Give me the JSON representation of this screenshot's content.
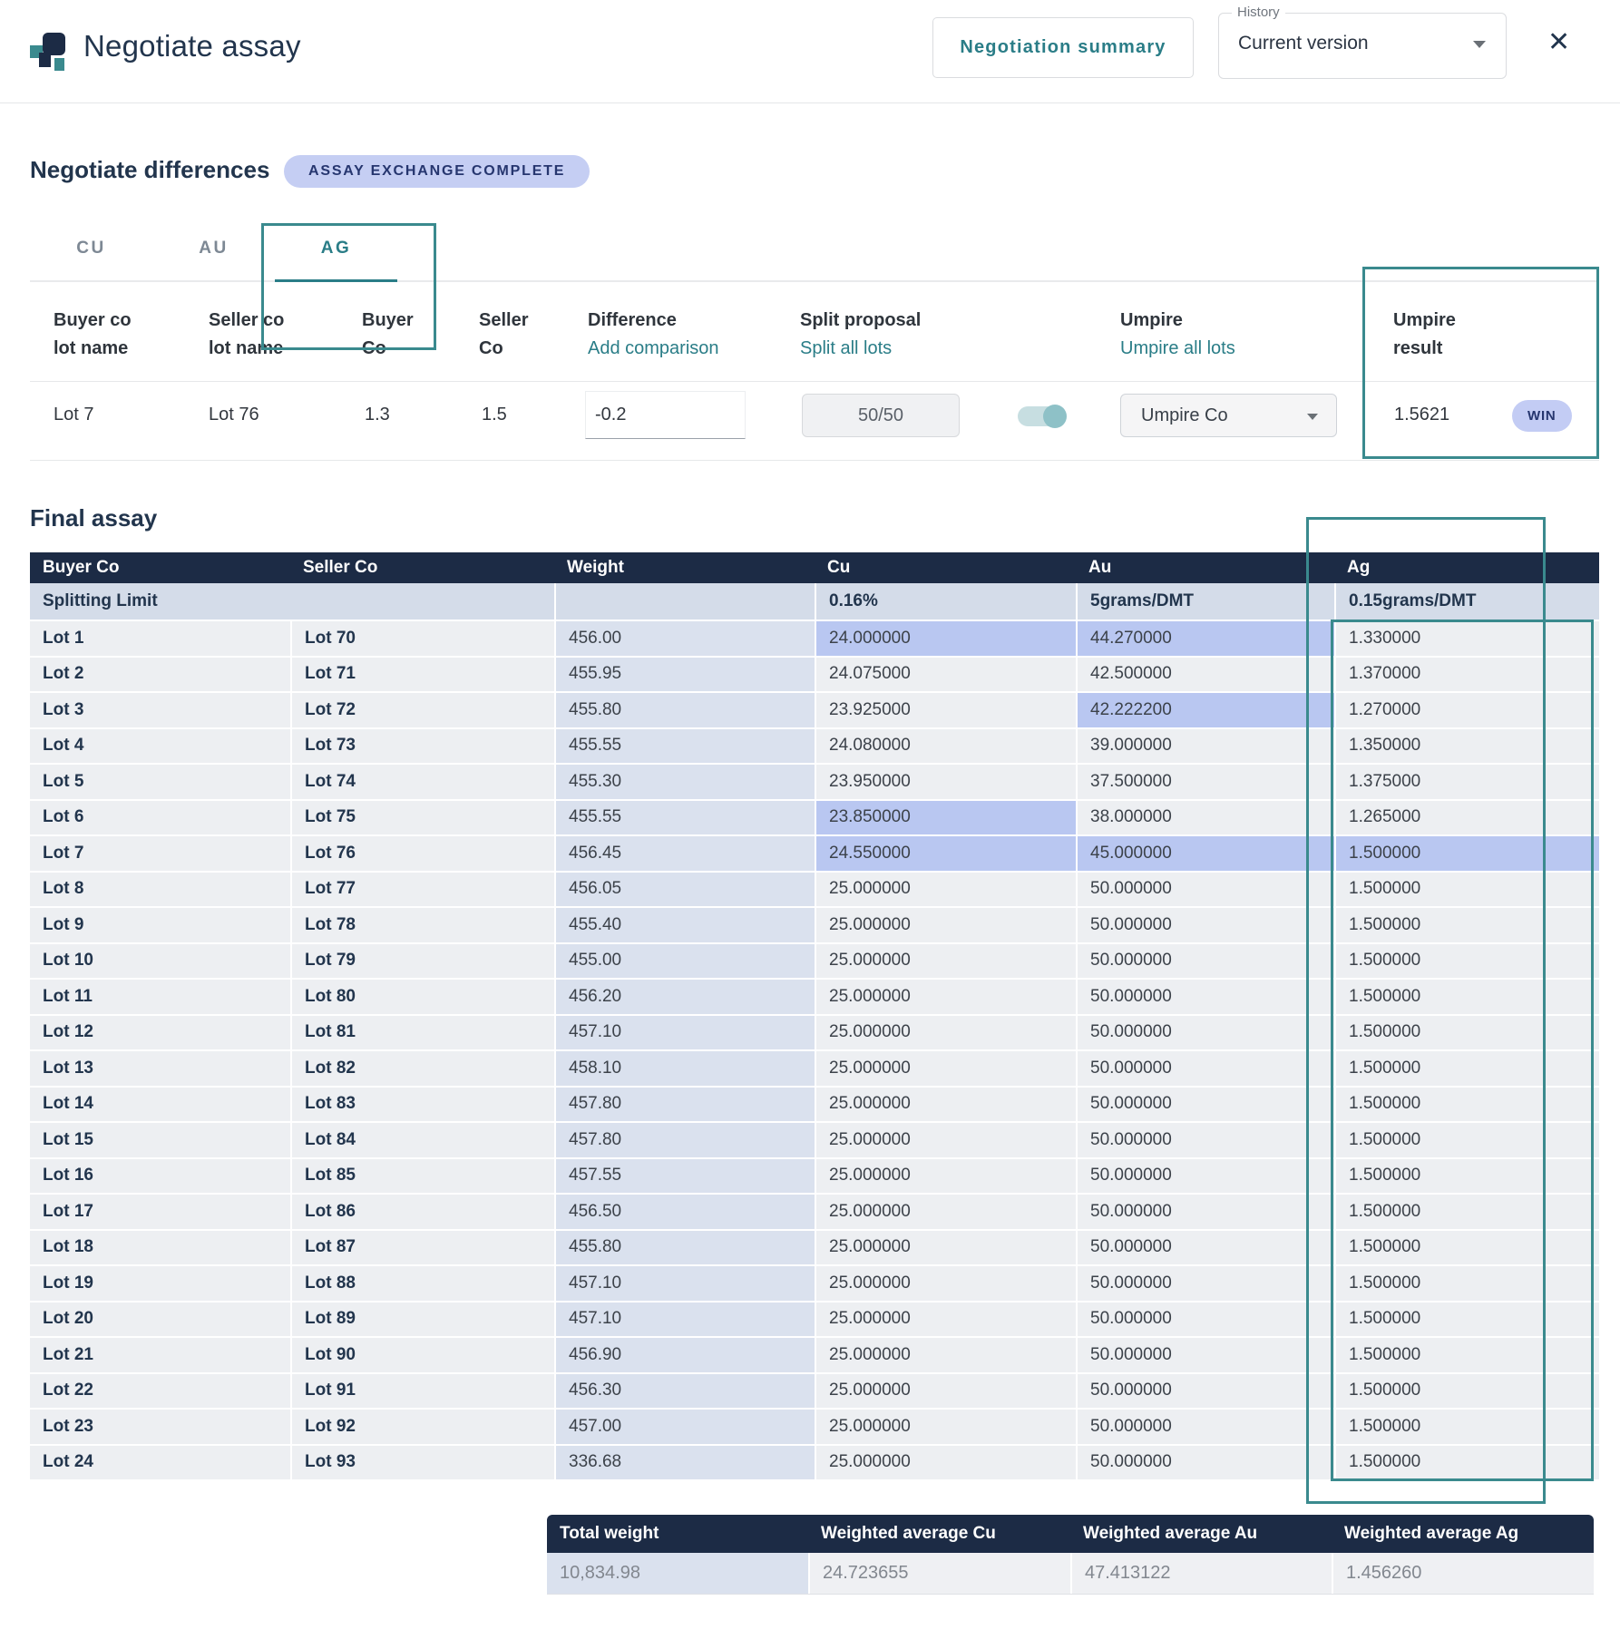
{
  "header": {
    "title": "Negotiate assay",
    "summary_button": "Negotiation summary",
    "history_label": "History",
    "history_value": "Current version"
  },
  "icons": {
    "close": "✕"
  },
  "negotiate_differences": {
    "heading": "Negotiate differences",
    "status_badge": "ASSAY EXCHANGE COMPLETE",
    "tabs": [
      {
        "label": "CU",
        "active": false
      },
      {
        "label": "AU",
        "active": false
      },
      {
        "label": "AG",
        "active": true
      }
    ],
    "columns": {
      "buyer_lot": [
        "Buyer co",
        "lot name"
      ],
      "seller_lot": [
        "Seller co",
        "lot name"
      ],
      "buyer_co": [
        "Buyer",
        "Co"
      ],
      "seller_co": [
        "Seller",
        "Co"
      ],
      "difference": {
        "title": "Difference",
        "link": "Add comparison"
      },
      "split": {
        "title": "Split proposal",
        "link": "Split all lots"
      },
      "umpire": {
        "title": "Umpire",
        "link": "Umpire all lots"
      },
      "result": [
        "Umpire",
        "result"
      ]
    },
    "row": {
      "buyer_lot": "Lot 7",
      "seller_lot": "Lot 76",
      "buyer_co": "1.3",
      "seller_co": "1.5",
      "difference": "-0.2",
      "split_button": "50/50",
      "toggle_on": true,
      "umpire_select": "Umpire Co",
      "umpire_result": "1.5621",
      "result_badge": "WIN"
    }
  },
  "final_assay": {
    "heading": "Final assay",
    "columns": [
      "Buyer Co",
      "Seller Co",
      "Weight",
      "Cu",
      "Au",
      "Ag"
    ],
    "splitting_limit": {
      "label": "Splitting Limit",
      "cu": "0.16%",
      "au": "5grams/DMT",
      "ag": "0.15grams/DMT"
    },
    "rows": [
      {
        "buyer": "Lot 1",
        "seller": "Lot 70",
        "weight": "456.00",
        "cu": "24.000000",
        "au": "44.270000",
        "ag": "1.330000",
        "hl": [
          "cu",
          "au"
        ]
      },
      {
        "buyer": "Lot 2",
        "seller": "Lot 71",
        "weight": "455.95",
        "cu": "24.075000",
        "au": "42.500000",
        "ag": "1.370000",
        "hl": []
      },
      {
        "buyer": "Lot 3",
        "seller": "Lot 72",
        "weight": "455.80",
        "cu": "23.925000",
        "au": "42.222200",
        "ag": "1.270000",
        "hl": [
          "au"
        ]
      },
      {
        "buyer": "Lot 4",
        "seller": "Lot 73",
        "weight": "455.55",
        "cu": "24.080000",
        "au": "39.000000",
        "ag": "1.350000",
        "hl": []
      },
      {
        "buyer": "Lot 5",
        "seller": "Lot 74",
        "weight": "455.30",
        "cu": "23.950000",
        "au": "37.500000",
        "ag": "1.375000",
        "hl": []
      },
      {
        "buyer": "Lot 6",
        "seller": "Lot 75",
        "weight": "455.55",
        "cu": "23.850000",
        "au": "38.000000",
        "ag": "1.265000",
        "hl": [
          "cu"
        ]
      },
      {
        "buyer": "Lot 7",
        "seller": "Lot 76",
        "weight": "456.45",
        "cu": "24.550000",
        "au": "45.000000",
        "ag": "1.500000",
        "hl": [
          "cu",
          "au",
          "ag"
        ]
      },
      {
        "buyer": "Lot 8",
        "seller": "Lot 77",
        "weight": "456.05",
        "cu": "25.000000",
        "au": "50.000000",
        "ag": "1.500000",
        "hl": []
      },
      {
        "buyer": "Lot 9",
        "seller": "Lot 78",
        "weight": "455.40",
        "cu": "25.000000",
        "au": "50.000000",
        "ag": "1.500000",
        "hl": []
      },
      {
        "buyer": "Lot 10",
        "seller": "Lot 79",
        "weight": "455.00",
        "cu": "25.000000",
        "au": "50.000000",
        "ag": "1.500000",
        "hl": []
      },
      {
        "buyer": "Lot 11",
        "seller": "Lot 80",
        "weight": "456.20",
        "cu": "25.000000",
        "au": "50.000000",
        "ag": "1.500000",
        "hl": []
      },
      {
        "buyer": "Lot 12",
        "seller": "Lot 81",
        "weight": "457.10",
        "cu": "25.000000",
        "au": "50.000000",
        "ag": "1.500000",
        "hl": []
      },
      {
        "buyer": "Lot 13",
        "seller": "Lot 82",
        "weight": "458.10",
        "cu": "25.000000",
        "au": "50.000000",
        "ag": "1.500000",
        "hl": []
      },
      {
        "buyer": "Lot 14",
        "seller": "Lot 83",
        "weight": "457.80",
        "cu": "25.000000",
        "au": "50.000000",
        "ag": "1.500000",
        "hl": []
      },
      {
        "buyer": "Lot 15",
        "seller": "Lot 84",
        "weight": "457.80",
        "cu": "25.000000",
        "au": "50.000000",
        "ag": "1.500000",
        "hl": []
      },
      {
        "buyer": "Lot 16",
        "seller": "Lot 85",
        "weight": "457.55",
        "cu": "25.000000",
        "au": "50.000000",
        "ag": "1.500000",
        "hl": []
      },
      {
        "buyer": "Lot 17",
        "seller": "Lot 86",
        "weight": "456.50",
        "cu": "25.000000",
        "au": "50.000000",
        "ag": "1.500000",
        "hl": []
      },
      {
        "buyer": "Lot 18",
        "seller": "Lot 87",
        "weight": "455.80",
        "cu": "25.000000",
        "au": "50.000000",
        "ag": "1.500000",
        "hl": []
      },
      {
        "buyer": "Lot 19",
        "seller": "Lot 88",
        "weight": "457.10",
        "cu": "25.000000",
        "au": "50.000000",
        "ag": "1.500000",
        "hl": []
      },
      {
        "buyer": "Lot 20",
        "seller": "Lot 89",
        "weight": "457.10",
        "cu": "25.000000",
        "au": "50.000000",
        "ag": "1.500000",
        "hl": []
      },
      {
        "buyer": "Lot 21",
        "seller": "Lot 90",
        "weight": "456.90",
        "cu": "25.000000",
        "au": "50.000000",
        "ag": "1.500000",
        "hl": []
      },
      {
        "buyer": "Lot 22",
        "seller": "Lot 91",
        "weight": "456.30",
        "cu": "25.000000",
        "au": "50.000000",
        "ag": "1.500000",
        "hl": []
      },
      {
        "buyer": "Lot 23",
        "seller": "Lot 92",
        "weight": "457.00",
        "cu": "25.000000",
        "au": "50.000000",
        "ag": "1.500000",
        "hl": []
      },
      {
        "buyer": "Lot 24",
        "seller": "Lot 93",
        "weight": "336.68",
        "cu": "25.000000",
        "au": "50.000000",
        "ag": "1.500000",
        "hl": []
      }
    ],
    "totals": {
      "headers": [
        "Total weight",
        "Weighted average Cu",
        "Weighted average Au",
        "Weighted average Ag"
      ],
      "values": [
        "10,834.98",
        "24.723655",
        "47.413122",
        "1.456260"
      ]
    }
  },
  "colors": {
    "accent_teal": "#2a7d87",
    "annotation_teal": "#3a8a8e",
    "navy": "#1c2b45",
    "highlight_periwinkle": "#b9c7f1",
    "badge_bg": "#c5cef3"
  }
}
